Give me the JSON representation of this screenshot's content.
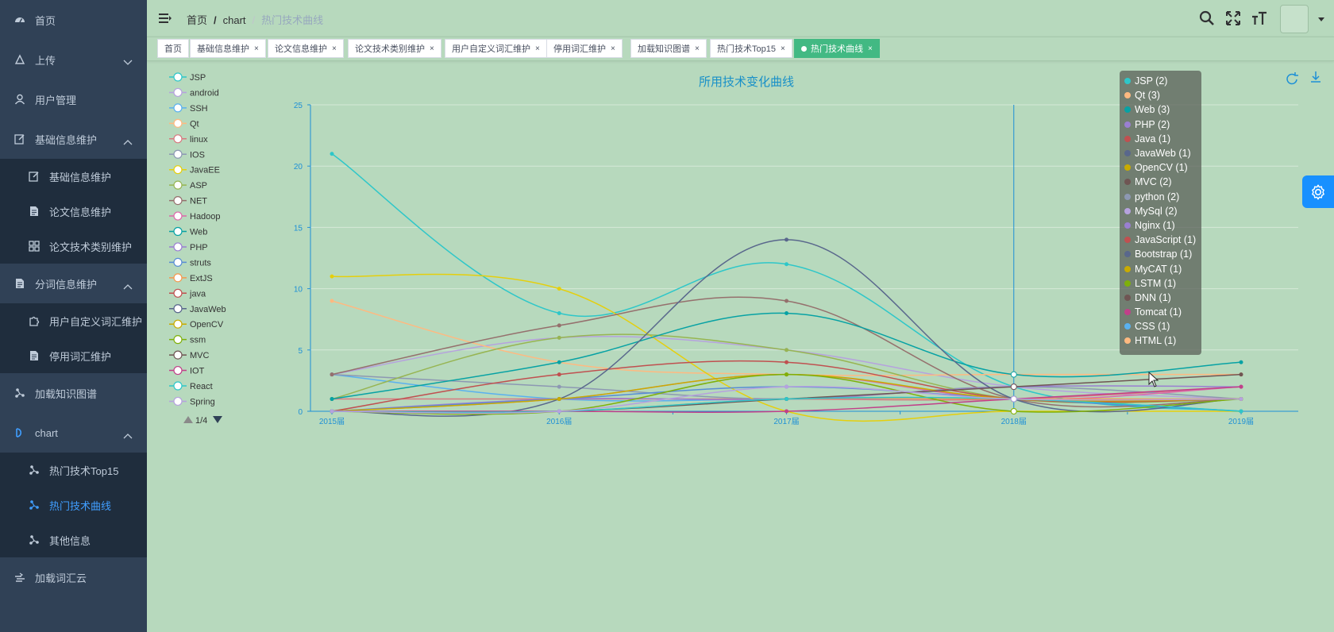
{
  "sidebar": {
    "items": [
      {
        "label": "首页",
        "icon": "dashboard-icon"
      },
      {
        "label": "上传",
        "icon": "upload-icon",
        "arrow": "down"
      },
      {
        "label": "用户管理",
        "icon": "user-icon"
      },
      {
        "label": "基础信息维护",
        "icon": "edit-icon",
        "arrow": "up",
        "children": [
          {
            "label": "基础信息维护",
            "icon": "edit-icon"
          },
          {
            "label": "论文信息维护",
            "icon": "document-icon"
          },
          {
            "label": "论文技术类别维护",
            "icon": "grid-icon"
          }
        ]
      },
      {
        "label": "分词信息维护",
        "icon": "document-icon",
        "arrow": "up",
        "children": [
          {
            "label": "用户自定义词汇维护",
            "icon": "puzzle-icon"
          },
          {
            "label": "停用词汇维护",
            "icon": "document-icon"
          }
        ]
      },
      {
        "label": "加载知识图谱",
        "icon": "share-icon"
      },
      {
        "label": "chart",
        "icon": "chart-icon",
        "arrow": "up",
        "children": [
          {
            "label": "热门技术Top15",
            "icon": "share-icon"
          },
          {
            "label": "热门技术曲线",
            "icon": "share-icon",
            "active": true
          },
          {
            "label": "其他信息",
            "icon": "share-icon"
          }
        ]
      },
      {
        "label": "加载词汇云",
        "icon": "cloud-icon"
      }
    ]
  },
  "breadcrumb": [
    "首页",
    "chart",
    "热门技术曲线"
  ],
  "tags": [
    {
      "label": "首页",
      "closable": false
    },
    {
      "label": "基础信息维护",
      "closable": true
    },
    {
      "label": "论文信息维护",
      "closable": true
    },
    {
      "label": "论文技术类别维护",
      "closable": true
    },
    {
      "label": "用户自定义词汇维护",
      "closable": true
    },
    {
      "label": "停用词汇维护",
      "closable": true
    },
    {
      "label": "加载知识图谱",
      "closable": true
    },
    {
      "label": "热门技术Top15",
      "closable": true
    },
    {
      "label": "热门技术曲线",
      "closable": true,
      "active": true
    }
  ],
  "tag_close_glyph": "×",
  "colors": {
    "accent": "#409eff",
    "active_tag": "#42b983",
    "axis": "#1e90d6",
    "sidebar_bg": "#304156"
  },
  "chart_data": {
    "type": "line",
    "smooth": true,
    "title": "所用技术变化曲线",
    "categories": [
      "2015届",
      "2016届",
      "2017届",
      "2018届",
      "2019届"
    ],
    "ylim": [
      0,
      25
    ],
    "yticks": [
      0,
      5,
      10,
      15,
      20,
      25
    ],
    "grid": true,
    "legend": {
      "position": "left",
      "page": "1/4",
      "items": [
        "JSP",
        "android",
        "SSH",
        "Qt",
        "linux",
        "IOS",
        "JavaEE",
        "ASP",
        "NET",
        "Hadoop",
        "Web",
        "PHP",
        "struts",
        "ExtJS",
        "java",
        "JavaWeb",
        "OpenCV",
        "ssm",
        "MVC",
        "IOT",
        "React",
        "Spring"
      ]
    },
    "series": [
      {
        "name": "JSP",
        "color": "#2ec7c9",
        "values": [
          21,
          8,
          12,
          2,
          0
        ]
      },
      {
        "name": "android",
        "color": "#b6a2de",
        "values": [
          3,
          6,
          5,
          2,
          1
        ]
      },
      {
        "name": "SSH",
        "color": "#5ab1ef",
        "values": [
          3,
          1,
          1,
          1,
          0
        ]
      },
      {
        "name": "Qt",
        "color": "#ffb980",
        "values": [
          9,
          4,
          3,
          3,
          3
        ]
      },
      {
        "name": "linux",
        "color": "#d87a80",
        "values": [
          1,
          1,
          1,
          1,
          2
        ]
      },
      {
        "name": "IOS",
        "color": "#8d98b3",
        "values": [
          3,
          2,
          1,
          2,
          1
        ]
      },
      {
        "name": "JavaEE",
        "color": "#e5cf0d",
        "values": [
          11,
          10,
          0,
          0,
          0
        ]
      },
      {
        "name": "ASP",
        "color": "#97b552",
        "values": [
          1,
          6,
          5,
          1,
          1
        ]
      },
      {
        "name": "NET",
        "color": "#95706d",
        "values": [
          3,
          7,
          9,
          1,
          1
        ]
      },
      {
        "name": "Hadoop",
        "color": "#dc69aa",
        "values": [
          0,
          1,
          3,
          1,
          2
        ]
      },
      {
        "name": "Web",
        "color": "#07a2a4",
        "values": [
          1,
          4,
          8,
          3,
          4
        ]
      },
      {
        "name": "PHP",
        "color": "#9a7fd1",
        "values": [
          0,
          1,
          1,
          2,
          2
        ]
      },
      {
        "name": "struts",
        "color": "#588dd5",
        "values": [
          0,
          1,
          2,
          1,
          0
        ]
      },
      {
        "name": "ExtJS",
        "color": "#f5994e",
        "values": [
          0,
          0,
          1,
          1,
          1
        ]
      },
      {
        "name": "java",
        "color": "#c05050",
        "values": [
          0,
          3,
          4,
          1,
          1
        ]
      },
      {
        "name": "JavaWeb",
        "color": "#59678c",
        "values": [
          0,
          1,
          14,
          1,
          1
        ]
      },
      {
        "name": "OpenCV",
        "color": "#c9ab00",
        "values": [
          0,
          1,
          3,
          1,
          1
        ]
      },
      {
        "name": "ssm",
        "color": "#7eb00a",
        "values": [
          0,
          0,
          3,
          0,
          1
        ]
      },
      {
        "name": "MVC",
        "color": "#6f5553",
        "values": [
          0,
          0,
          1,
          2,
          3
        ]
      },
      {
        "name": "IOT",
        "color": "#c14089",
        "values": [
          0,
          0,
          0,
          1,
          2
        ]
      },
      {
        "name": "React",
        "color": "#2ec7c9",
        "values": [
          0,
          0,
          1,
          1,
          0
        ]
      },
      {
        "name": "Spring",
        "color": "#b6a2de",
        "values": [
          0,
          0,
          2,
          1,
          1
        ]
      }
    ],
    "tooltip": {
      "category": "2018届",
      "items": [
        {
          "label": "JSP (2)",
          "color": "#2ec7c9"
        },
        {
          "label": "Qt (3)",
          "color": "#ffb980"
        },
        {
          "label": "Web (3)",
          "color": "#07a2a4"
        },
        {
          "label": "PHP (2)",
          "color": "#9a7fd1"
        },
        {
          "label": "Java (1)",
          "color": "#c05050"
        },
        {
          "label": "JavaWeb (1)",
          "color": "#59678c"
        },
        {
          "label": "OpenCV (1)",
          "color": "#c9ab00"
        },
        {
          "label": "MVC (2)",
          "color": "#6f5553"
        },
        {
          "label": "python (2)",
          "color": "#8d98b3"
        },
        {
          "label": "MySql (2)",
          "color": "#b6a2de"
        },
        {
          "label": "Nginx (1)",
          "color": "#9a7fd1"
        },
        {
          "label": "JavaScript (1)",
          "color": "#c05050"
        },
        {
          "label": "Bootstrap (1)",
          "color": "#59678c"
        },
        {
          "label": "MyCAT (1)",
          "color": "#c9ab00"
        },
        {
          "label": "LSTM (1)",
          "color": "#7eb00a"
        },
        {
          "label": "DNN (1)",
          "color": "#6f5553"
        },
        {
          "label": "Tomcat (1)",
          "color": "#c14089"
        },
        {
          "label": "CSS (1)",
          "color": "#5ab1ef"
        },
        {
          "label": "HTML (1)",
          "color": "#ffb980"
        }
      ]
    }
  }
}
